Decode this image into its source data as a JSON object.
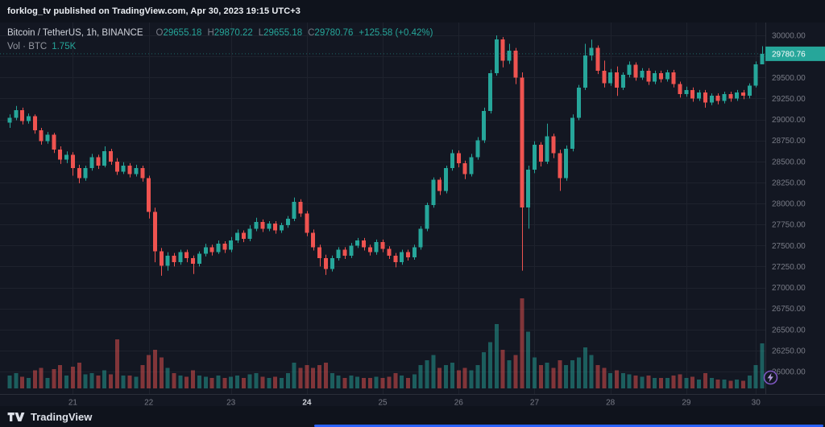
{
  "attribution": {
    "text": "forklog_tv published on TradingView.com, Apr 30, 2023 19:15 UTC+3"
  },
  "legend": {
    "symbol": "Bitcoin / TetherUS, 1h, BINANCE",
    "o_label": "O",
    "o_value": "29655.18",
    "h_label": "H",
    "h_value": "29870.22",
    "l_label": "L",
    "l_value": "29655.18",
    "c_label": "C",
    "c_value": "29780.76",
    "change": "+125.58 (+0.42%)",
    "vol_label": "Vol · BTC",
    "vol_value": "1.75K"
  },
  "price_scale": {
    "last_price": "29780.76"
  },
  "footer": {
    "brand": "TradingView"
  },
  "colors": {
    "background": "#131722",
    "up": "#26a69a",
    "down": "#ef5350",
    "grid": "#1e222d",
    "axis_line": "#2a2e39",
    "axis_text": "#787b86",
    "bold_tick_text": "#d1d4dc",
    "last_label_text": "#ffffff",
    "accent_blue": "#2962ff"
  },
  "chart_data": {
    "type": "candlestick",
    "title": "Bitcoin / TetherUS, 1h, BINANCE",
    "ylim": [
      26000,
      30000
    ],
    "price_ticks": [
      "30000.00",
      "29750.00",
      "29500.00",
      "29250.00",
      "29000.00",
      "28750.00",
      "28500.00",
      "28250.00",
      "28000.00",
      "27750.00",
      "27500.00",
      "27250.00",
      "27000.00",
      "26750.00",
      "26500.00",
      "26250.00",
      "26000.00"
    ],
    "x_ticks": [
      {
        "label": "21",
        "index": 10,
        "bold": false
      },
      {
        "label": "22",
        "index": 22,
        "bold": false
      },
      {
        "label": "23",
        "index": 35,
        "bold": false
      },
      {
        "label": "24",
        "index": 47,
        "bold": true
      },
      {
        "label": "25",
        "index": 59,
        "bold": false
      },
      {
        "label": "26",
        "index": 71,
        "bold": false
      },
      {
        "label": "27",
        "index": 83,
        "bold": false
      },
      {
        "label": "28",
        "index": 95,
        "bold": false
      },
      {
        "label": "29",
        "index": 107,
        "bold": false
      },
      {
        "label": "30",
        "index": 118,
        "bold": false
      }
    ],
    "last_close": 29780.76,
    "candles": [
      [
        28960,
        29060,
        28900,
        29020,
        0.5
      ],
      [
        29020,
        29160,
        28990,
        29110,
        0.6
      ],
      [
        29110,
        29140,
        28940,
        28980,
        0.45
      ],
      [
        28980,
        29070,
        28950,
        29040,
        0.4
      ],
      [
        29040,
        29060,
        28830,
        28870,
        0.7
      ],
      [
        28870,
        28900,
        28700,
        28740,
        0.8
      ],
      [
        28740,
        28850,
        28710,
        28820,
        0.4
      ],
      [
        28820,
        28840,
        28600,
        28640,
        0.75
      ],
      [
        28640,
        28680,
        28470,
        28520,
        0.9
      ],
      [
        28520,
        28620,
        28480,
        28580,
        0.5
      ],
      [
        28580,
        28610,
        28330,
        28420,
        0.85
      ],
      [
        28420,
        28460,
        28240,
        28300,
        1.0
      ],
      [
        28300,
        28450,
        28270,
        28420,
        0.55
      ],
      [
        28420,
        28590,
        28390,
        28550,
        0.6
      ],
      [
        28550,
        28580,
        28410,
        28450,
        0.5
      ],
      [
        28450,
        28680,
        28430,
        28620,
        0.7
      ],
      [
        28620,
        28650,
        28460,
        28500,
        0.55
      ],
      [
        28500,
        28540,
        28340,
        28380,
        1.9
      ],
      [
        28380,
        28490,
        28350,
        28450,
        0.5
      ],
      [
        28450,
        28480,
        28310,
        28350,
        0.5
      ],
      [
        28350,
        28460,
        28320,
        28420,
        0.45
      ],
      [
        28420,
        28450,
        28260,
        28300,
        0.9
      ],
      [
        28300,
        28330,
        27820,
        27900,
        1.3
      ],
      [
        27900,
        27950,
        27300,
        27430,
        1.5
      ],
      [
        27430,
        27470,
        27140,
        27260,
        1.2
      ],
      [
        27260,
        27420,
        27200,
        27380,
        0.8
      ],
      [
        27380,
        27410,
        27250,
        27300,
        0.6
      ],
      [
        27300,
        27450,
        27270,
        27420,
        0.5
      ],
      [
        27420,
        27450,
        27300,
        27350,
        0.45
      ],
      [
        27350,
        27380,
        27160,
        27280,
        0.7
      ],
      [
        27280,
        27430,
        27250,
        27400,
        0.5
      ],
      [
        27400,
        27520,
        27370,
        27480,
        0.45
      ],
      [
        27480,
        27510,
        27380,
        27420,
        0.4
      ],
      [
        27420,
        27560,
        27400,
        27520,
        0.5
      ],
      [
        27520,
        27550,
        27410,
        27450,
        0.4
      ],
      [
        27450,
        27600,
        27420,
        27560,
        0.45
      ],
      [
        27560,
        27690,
        27530,
        27650,
        0.5
      ],
      [
        27650,
        27680,
        27540,
        27580,
        0.4
      ],
      [
        27580,
        27740,
        27550,
        27700,
        0.55
      ],
      [
        27700,
        27830,
        27670,
        27780,
        0.6
      ],
      [
        27780,
        27810,
        27660,
        27700,
        0.45
      ],
      [
        27700,
        27790,
        27670,
        27760,
        0.4
      ],
      [
        27760,
        27790,
        27640,
        27680,
        0.45
      ],
      [
        27680,
        27770,
        27650,
        27740,
        0.4
      ],
      [
        27740,
        27850,
        27710,
        27820,
        0.6
      ],
      [
        27820,
        28070,
        27790,
        28020,
        1.0
      ],
      [
        28020,
        28050,
        27840,
        27880,
        0.8
      ],
      [
        27880,
        27910,
        27610,
        27650,
        0.9
      ],
      [
        27650,
        27690,
        27440,
        27480,
        0.8
      ],
      [
        27480,
        27510,
        27250,
        27350,
        0.9
      ],
      [
        27350,
        27390,
        27150,
        27220,
        1.0
      ],
      [
        27220,
        27380,
        27190,
        27350,
        0.6
      ],
      [
        27350,
        27480,
        27320,
        27450,
        0.5
      ],
      [
        27450,
        27480,
        27340,
        27380,
        0.4
      ],
      [
        27380,
        27530,
        27350,
        27500,
        0.5
      ],
      [
        27500,
        27590,
        27470,
        27560,
        0.45
      ],
      [
        27560,
        27590,
        27440,
        27480,
        0.4
      ],
      [
        27480,
        27510,
        27380,
        27420,
        0.4
      ],
      [
        27420,
        27570,
        27390,
        27540,
        0.45
      ],
      [
        27540,
        27570,
        27420,
        27460,
        0.4
      ],
      [
        27460,
        27490,
        27340,
        27380,
        0.45
      ],
      [
        27380,
        27410,
        27240,
        27300,
        0.6
      ],
      [
        27300,
        27450,
        27270,
        27420,
        0.5
      ],
      [
        27420,
        27450,
        27320,
        27360,
        0.4
      ],
      [
        27360,
        27510,
        27330,
        27480,
        0.55
      ],
      [
        27480,
        27730,
        27450,
        27700,
        0.9
      ],
      [
        27700,
        28010,
        27670,
        27980,
        1.1
      ],
      [
        27980,
        28310,
        27950,
        28280,
        1.3
      ],
      [
        28280,
        28310,
        28100,
        28150,
        0.8
      ],
      [
        28150,
        28450,
        28120,
        28420,
        0.9
      ],
      [
        28420,
        28640,
        28390,
        28600,
        1.0
      ],
      [
        28600,
        28630,
        28430,
        28480,
        0.7
      ],
      [
        28480,
        28510,
        28290,
        28350,
        0.8
      ],
      [
        28350,
        28590,
        28320,
        28550,
        0.7
      ],
      [
        28550,
        28790,
        28520,
        28750,
        0.9
      ],
      [
        28750,
        29140,
        28720,
        29100,
        1.4
      ],
      [
        29100,
        29590,
        29070,
        29550,
        1.8
      ],
      [
        29550,
        30000,
        29520,
        29950,
        2.5
      ],
      [
        29950,
        29980,
        29620,
        29700,
        1.5
      ],
      [
        29700,
        29900,
        29660,
        29820,
        1.1
      ],
      [
        29820,
        29850,
        29420,
        29500,
        1.3
      ],
      [
        29500,
        29560,
        27200,
        27950,
        3.5
      ],
      [
        27950,
        28450,
        27700,
        28400,
        2.2
      ],
      [
        28400,
        28740,
        28360,
        28700,
        1.2
      ],
      [
        28700,
        28730,
        28440,
        28500,
        0.9
      ],
      [
        28500,
        28950,
        28470,
        28800,
        1.0
      ],
      [
        28800,
        28830,
        28540,
        28600,
        0.8
      ],
      [
        28600,
        28640,
        28150,
        28300,
        1.1
      ],
      [
        28300,
        28690,
        28270,
        28650,
        0.9
      ],
      [
        28650,
        29060,
        28620,
        29020,
        1.1
      ],
      [
        29020,
        29410,
        28990,
        29380,
        1.2
      ],
      [
        29380,
        29900,
        29350,
        29760,
        1.6
      ],
      [
        29760,
        29950,
        29700,
        29850,
        1.3
      ],
      [
        29850,
        29880,
        29540,
        29580,
        0.9
      ],
      [
        29580,
        29700,
        29380,
        29430,
        0.8
      ],
      [
        29430,
        29600,
        29400,
        29560,
        0.6
      ],
      [
        29560,
        29630,
        29280,
        29380,
        0.7
      ],
      [
        29380,
        29560,
        29350,
        29530,
        0.6
      ],
      [
        29530,
        29690,
        29500,
        29650,
        0.55
      ],
      [
        29650,
        29680,
        29460,
        29500,
        0.5
      ],
      [
        29500,
        29610,
        29470,
        29580,
        0.45
      ],
      [
        29580,
        29610,
        29410,
        29450,
        0.5
      ],
      [
        29450,
        29580,
        29420,
        29550,
        0.4
      ],
      [
        29550,
        29580,
        29440,
        29480,
        0.4
      ],
      [
        29480,
        29590,
        29450,
        29560,
        0.4
      ],
      [
        29560,
        29590,
        29380,
        29420,
        0.5
      ],
      [
        29420,
        29450,
        29260,
        29300,
        0.55
      ],
      [
        29300,
        29390,
        29270,
        29350,
        0.4
      ],
      [
        29350,
        29380,
        29210,
        29250,
        0.45
      ],
      [
        29250,
        29350,
        29220,
        29320,
        0.35
      ],
      [
        29320,
        29350,
        29140,
        29200,
        0.6
      ],
      [
        29200,
        29310,
        29170,
        29280,
        0.4
      ],
      [
        29280,
        29310,
        29180,
        29220,
        0.35
      ],
      [
        29220,
        29330,
        29190,
        29300,
        0.35
      ],
      [
        29300,
        29330,
        29210,
        29250,
        0.3
      ],
      [
        29250,
        29350,
        29220,
        29320,
        0.35
      ],
      [
        29320,
        29350,
        29240,
        29280,
        0.3
      ],
      [
        29280,
        29430,
        29250,
        29400,
        0.5
      ],
      [
        29400,
        29690,
        29380,
        29655.18,
        0.9
      ],
      [
        29655.18,
        29870.22,
        29655.18,
        29780.76,
        1.75
      ]
    ]
  }
}
